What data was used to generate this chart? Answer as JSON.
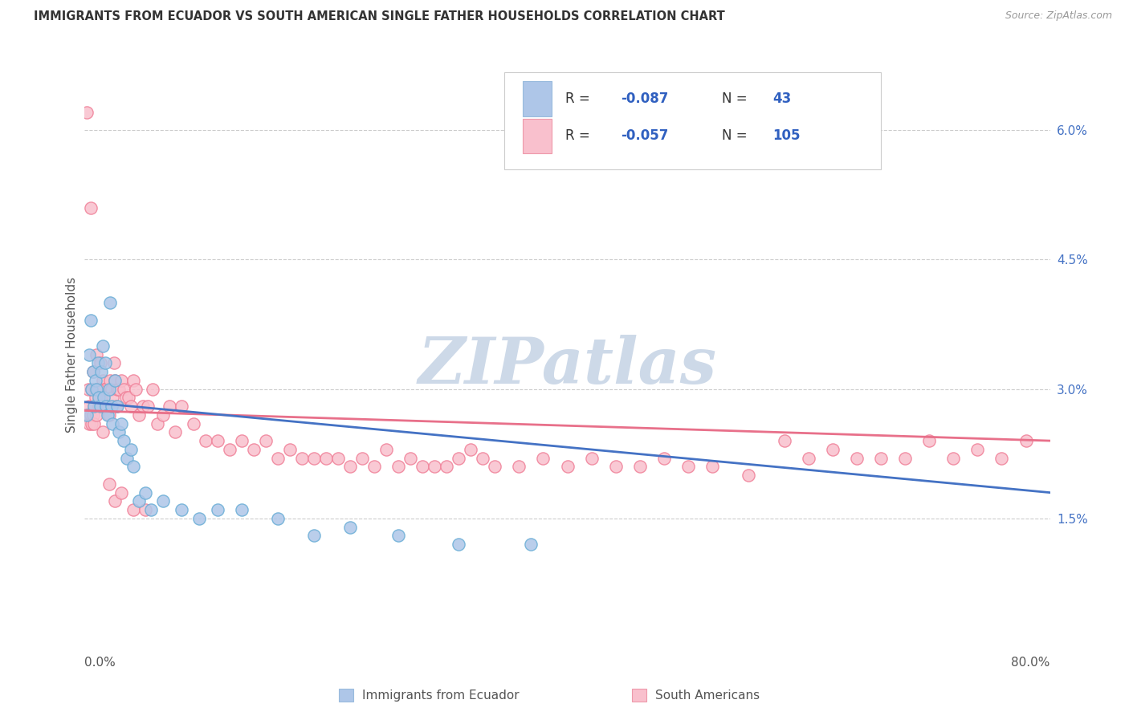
{
  "title": "IMMIGRANTS FROM ECUADOR VS SOUTH AMERICAN SINGLE FATHER HOUSEHOLDS CORRELATION CHART",
  "source": "Source: ZipAtlas.com",
  "ylabel": "Single Father Households",
  "right_yticks": [
    0.015,
    0.03,
    0.045,
    0.06
  ],
  "right_yticklabels": [
    "1.5%",
    "3.0%",
    "4.5%",
    "6.0%"
  ],
  "xlim": [
    0.0,
    0.8
  ],
  "ylim": [
    0.0,
    0.068
  ],
  "blue_color": "#aec6e8",
  "pink_color": "#f9c0cd",
  "blue_edge_color": "#6aaed6",
  "pink_edge_color": "#f08098",
  "blue_line_color": "#4472c4",
  "pink_line_color": "#e8708a",
  "watermark_color": "#cdd9e8",
  "grid_color": "#cccccc",
  "background_color": "#ffffff",
  "title_color": "#333333",
  "source_color": "#999999",
  "legend_text_color": "#333333",
  "legend_r_color": "#3060c0",
  "blue_scatter_x": [
    0.002,
    0.004,
    0.005,
    0.006,
    0.007,
    0.008,
    0.009,
    0.01,
    0.011,
    0.012,
    0.013,
    0.014,
    0.015,
    0.016,
    0.017,
    0.018,
    0.019,
    0.02,
    0.021,
    0.022,
    0.023,
    0.025,
    0.027,
    0.028,
    0.03,
    0.032,
    0.035,
    0.038,
    0.04,
    0.045,
    0.05,
    0.055,
    0.065,
    0.08,
    0.095,
    0.11,
    0.13,
    0.16,
    0.19,
    0.22,
    0.26,
    0.31,
    0.37
  ],
  "blue_scatter_y": [
    0.027,
    0.034,
    0.038,
    0.03,
    0.032,
    0.028,
    0.031,
    0.03,
    0.033,
    0.029,
    0.028,
    0.032,
    0.035,
    0.029,
    0.033,
    0.028,
    0.027,
    0.03,
    0.04,
    0.028,
    0.026,
    0.031,
    0.028,
    0.025,
    0.026,
    0.024,
    0.022,
    0.023,
    0.021,
    0.017,
    0.018,
    0.016,
    0.017,
    0.016,
    0.015,
    0.016,
    0.016,
    0.015,
    0.013,
    0.014,
    0.013,
    0.012,
    0.012
  ],
  "pink_scatter_x": [
    0.002,
    0.003,
    0.004,
    0.005,
    0.006,
    0.007,
    0.008,
    0.009,
    0.01,
    0.011,
    0.012,
    0.013,
    0.014,
    0.015,
    0.016,
    0.017,
    0.018,
    0.019,
    0.02,
    0.021,
    0.022,
    0.023,
    0.024,
    0.025,
    0.026,
    0.027,
    0.028,
    0.03,
    0.032,
    0.034,
    0.036,
    0.038,
    0.04,
    0.042,
    0.045,
    0.048,
    0.052,
    0.056,
    0.06,
    0.065,
    0.07,
    0.075,
    0.08,
    0.09,
    0.1,
    0.11,
    0.12,
    0.13,
    0.14,
    0.15,
    0.16,
    0.17,
    0.18,
    0.19,
    0.2,
    0.21,
    0.22,
    0.23,
    0.24,
    0.25,
    0.26,
    0.27,
    0.28,
    0.29,
    0.3,
    0.31,
    0.32,
    0.33,
    0.34,
    0.36,
    0.38,
    0.4,
    0.42,
    0.44,
    0.46,
    0.48,
    0.5,
    0.52,
    0.55,
    0.58,
    0.6,
    0.62,
    0.64,
    0.66,
    0.68,
    0.7,
    0.72,
    0.74,
    0.76,
    0.78,
    0.003,
    0.004,
    0.005,
    0.006,
    0.007,
    0.008,
    0.009,
    0.01,
    0.011,
    0.015,
    0.02,
    0.025,
    0.03,
    0.04,
    0.05
  ],
  "pink_scatter_y": [
    0.062,
    0.03,
    0.028,
    0.051,
    0.03,
    0.032,
    0.028,
    0.03,
    0.034,
    0.029,
    0.028,
    0.033,
    0.028,
    0.031,
    0.03,
    0.03,
    0.028,
    0.028,
    0.027,
    0.031,
    0.03,
    0.029,
    0.033,
    0.031,
    0.028,
    0.03,
    0.03,
    0.031,
    0.03,
    0.029,
    0.029,
    0.028,
    0.031,
    0.03,
    0.027,
    0.028,
    0.028,
    0.03,
    0.026,
    0.027,
    0.028,
    0.025,
    0.028,
    0.026,
    0.024,
    0.024,
    0.023,
    0.024,
    0.023,
    0.024,
    0.022,
    0.023,
    0.022,
    0.022,
    0.022,
    0.022,
    0.021,
    0.022,
    0.021,
    0.023,
    0.021,
    0.022,
    0.021,
    0.021,
    0.021,
    0.022,
    0.023,
    0.022,
    0.021,
    0.021,
    0.022,
    0.021,
    0.022,
    0.021,
    0.021,
    0.022,
    0.021,
    0.021,
    0.02,
    0.024,
    0.022,
    0.023,
    0.022,
    0.022,
    0.022,
    0.024,
    0.022,
    0.023,
    0.022,
    0.024,
    0.027,
    0.026,
    0.027,
    0.026,
    0.027,
    0.026,
    0.029,
    0.027,
    0.03,
    0.025,
    0.019,
    0.017,
    0.018,
    0.016,
    0.016
  ],
  "blue_trend_x0": 0.0,
  "blue_trend_y0": 0.0285,
  "blue_trend_x1": 0.8,
  "blue_trend_y1": 0.018,
  "pink_trend_x0": 0.0,
  "pink_trend_y0": 0.0275,
  "pink_trend_x1": 0.8,
  "pink_trend_y1": 0.024
}
